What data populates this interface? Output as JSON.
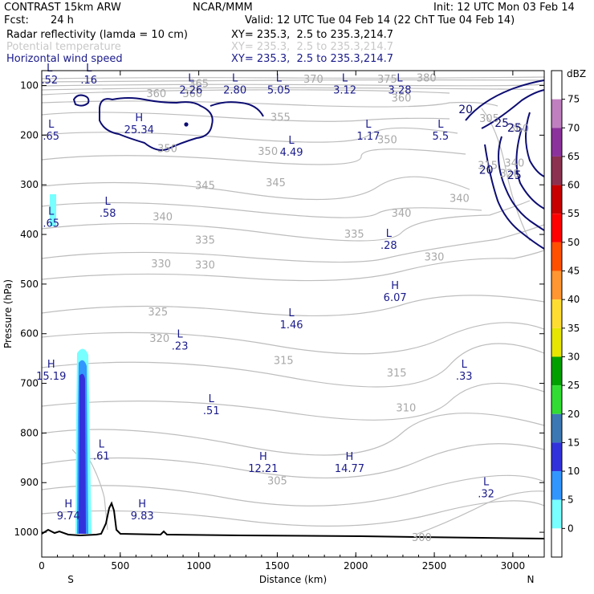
{
  "header": {
    "title": "CONTRAST 15km ARW",
    "model": "NCAR/MMM",
    "init": "Init: 12 UTC Mon 03 Feb 14",
    "fcst_label": "Fcst:",
    "fcst_value": "24 h",
    "valid": "Valid: 12 UTC Tue 04 Feb 14 (22 ChT Tue 04 Feb 14)",
    "fields": [
      {
        "name": "Radar reflectivity (lamda = 10 cm)",
        "xy": "XY= 235.3,  2.5 to 235.3,214.7",
        "color": "#000000"
      },
      {
        "name": "Potential temperature",
        "xy": "XY= 235.3,  2.5 to 235.3,214.7",
        "color": "#c8c8c8"
      },
      {
        "name": "Horizontal wind speed",
        "xy": "XY= 235.3,  2.5 to 235.3,214.7",
        "color": "#1a1a8c"
      }
    ]
  },
  "chart_data": {
    "type": "cross-section",
    "xlabel": "Distance (km)",
    "ylabel": "Pressure (hPa)",
    "xlim": [
      0,
      3200
    ],
    "ylim": [
      1050,
      70
    ],
    "x_ticks": [
      "0",
      "500",
      "1000",
      "1500",
      "2000",
      "2500",
      "3000"
    ],
    "y_ticks": [
      "100",
      "200",
      "300",
      "400",
      "500",
      "600",
      "700",
      "800",
      "900",
      "1000"
    ],
    "x_end_labels": {
      "left": "S",
      "right": "N"
    },
    "theta_labels": [
      {
        "text": "380",
        "x": 2450,
        "p": 85
      },
      {
        "text": "370",
        "x": 1730,
        "p": 88
      },
      {
        "text": "375",
        "x": 2200,
        "p": 88
      },
      {
        "text": "365",
        "x": 1000,
        "p": 97
      },
      {
        "text": "360",
        "x": 730,
        "p": 117
      },
      {
        "text": "360",
        "x": 960,
        "p": 117
      },
      {
        "text": "360",
        "x": 2290,
        "p": 126
      },
      {
        "text": "355",
        "x": 1520,
        "p": 165
      },
      {
        "text": "350",
        "x": 800,
        "p": 228
      },
      {
        "text": "350",
        "x": 1440,
        "p": 233
      },
      {
        "text": "350",
        "x": 2200,
        "p": 210
      },
      {
        "text": "345",
        "x": 1040,
        "p": 302
      },
      {
        "text": "345",
        "x": 1490,
        "p": 296
      },
      {
        "text": "340",
        "x": 770,
        "p": 365
      },
      {
        "text": "340",
        "x": 2290,
        "p": 358
      },
      {
        "text": "340",
        "x": 2660,
        "p": 328
      },
      {
        "text": "335",
        "x": 1040,
        "p": 412
      },
      {
        "text": "335",
        "x": 1990,
        "p": 400
      },
      {
        "text": "330",
        "x": 760,
        "p": 460
      },
      {
        "text": "330",
        "x": 1040,
        "p": 462
      },
      {
        "text": "330",
        "x": 2500,
        "p": 446
      },
      {
        "text": "325",
        "x": 740,
        "p": 557
      },
      {
        "text": "320",
        "x": 750,
        "p": 610
      },
      {
        "text": "315",
        "x": 1540,
        "p": 655
      },
      {
        "text": "315",
        "x": 2260,
        "p": 680
      },
      {
        "text": "310",
        "x": 2320,
        "p": 750
      },
      {
        "text": "305",
        "x": 1500,
        "p": 897
      },
      {
        "text": "300",
        "x": 2420,
        "p": 1011
      },
      {
        "text": "305",
        "x": 2850,
        "p": 167
      },
      {
        "text": "315",
        "x": 2840,
        "p": 262
      },
      {
        "text": "340",
        "x": 3010,
        "p": 257
      },
      {
        "text": "320",
        "x": 2980,
        "p": 278
      },
      {
        "text": "360",
        "x": 3040,
        "p": 187
      }
    ],
    "wind_labels": [
      {
        "text": "20",
        "x": 2700,
        "p": 148
      },
      {
        "text": "20",
        "x": 2830,
        "p": 270
      },
      {
        "text": "25",
        "x": 2930,
        "p": 175
      },
      {
        "text": "25",
        "x": 3010,
        "p": 185
      },
      {
        "text": "25",
        "x": 3010,
        "p": 280
      }
    ],
    "extrema": [
      {
        "type": "L",
        "value": ".52",
        "x": 50,
        "p": 72
      },
      {
        "type": "L",
        "value": ".16",
        "x": 300,
        "p": 72
      },
      {
        "type": "L",
        "value": "2.26",
        "x": 950,
        "p": 92
      },
      {
        "type": "L",
        "value": "2.80",
        "x": 1230,
        "p": 92
      },
      {
        "type": "L",
        "value": "5.05",
        "x": 1510,
        "p": 92
      },
      {
        "type": "L",
        "value": "3.12",
        "x": 1930,
        "p": 92
      },
      {
        "type": "L",
        "value": "3.28",
        "x": 2280,
        "p": 92
      },
      {
        "type": "H",
        "value": "25.34",
        "x": 620,
        "p": 172
      },
      {
        "type": "L",
        "value": ".65",
        "x": 60,
        "p": 185
      },
      {
        "type": "L",
        "value": "1.17",
        "x": 2080,
        "p": 185
      },
      {
        "type": "L",
        "value": "5.5",
        "x": 2540,
        "p": 185
      },
      {
        "type": "L",
        "value": "4.49",
        "x": 1590,
        "p": 217
      },
      {
        "type": "L",
        "value": ".58",
        "x": 420,
        "p": 340
      },
      {
        "type": "L",
        "value": ".65",
        "x": 60,
        "p": 360
      },
      {
        "type": "L",
        "value": ".28",
        "x": 2210,
        "p": 405
      },
      {
        "type": "H",
        "value": "6.07",
        "x": 2250,
        "p": 510
      },
      {
        "type": "L",
        "value": "1.46",
        "x": 1590,
        "p": 565
      },
      {
        "type": "L",
        "value": ".23",
        "x": 880,
        "p": 608
      },
      {
        "type": "H",
        "value": "15.19",
        "x": 60,
        "p": 668
      },
      {
        "type": "L",
        "value": ".33",
        "x": 2690,
        "p": 668
      },
      {
        "type": "L",
        "value": ".51",
        "x": 1080,
        "p": 738
      },
      {
        "type": "L",
        "value": ".61",
        "x": 380,
        "p": 829
      },
      {
        "type": "H",
        "value": "12.21",
        "x": 1410,
        "p": 854
      },
      {
        "type": "H",
        "value": "14.77",
        "x": 1960,
        "p": 854
      },
      {
        "type": "L",
        "value": ".32",
        "x": 2830,
        "p": 905
      },
      {
        "type": "H",
        "value": "9.74",
        "x": 170,
        "p": 950
      },
      {
        "type": "H",
        "value": "9.83",
        "x": 640,
        "p": 950
      }
    ],
    "legend": {
      "title": "dBZ",
      "levels": [
        "75",
        "70",
        "65",
        "60",
        "55",
        "50",
        "45",
        "40",
        "35",
        "30",
        "25",
        "20",
        "15",
        "10",
        "5",
        "0"
      ],
      "colors": [
        "#ffffff",
        "#c080c0",
        "#8c329c",
        "#8c3250",
        "#c80000",
        "#ff0000",
        "#ff5000",
        "#ff9632",
        "#ffdc32",
        "#e6e600",
        "#00a000",
        "#32dc32",
        "#3c78b4",
        "#3232dc",
        "#3296ff",
        "#78ffff",
        "#ffffff"
      ]
    }
  }
}
